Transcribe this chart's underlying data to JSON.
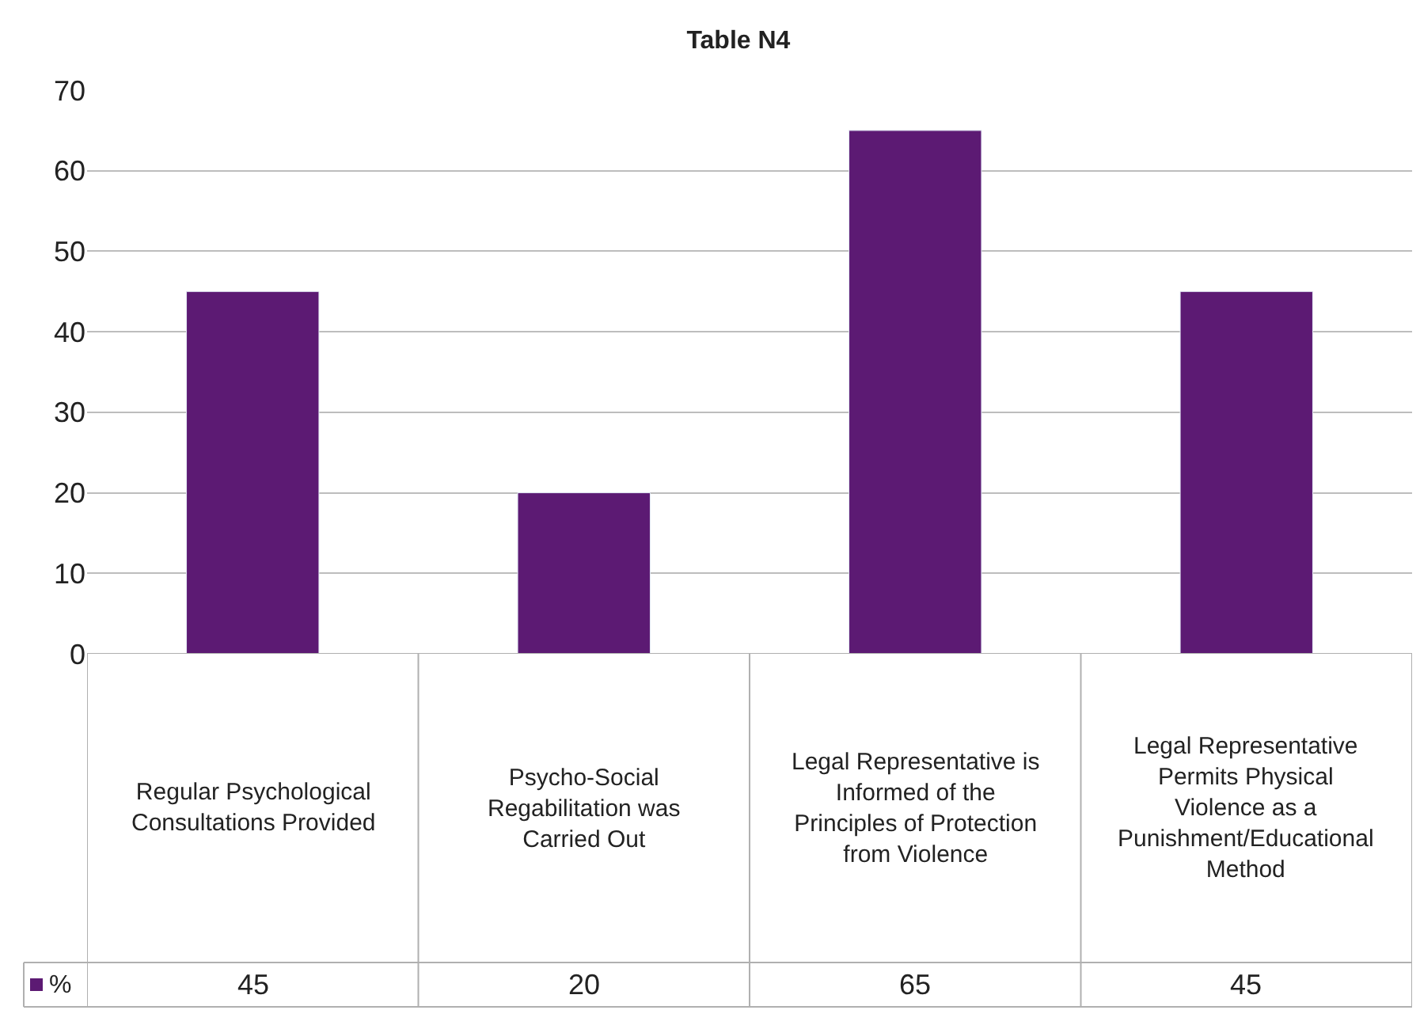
{
  "chart_data": {
    "type": "bar",
    "title": "Table N4",
    "categories": [
      "Regular Psychological Consultations Provided",
      "Psycho-Social Regabilitation was Carried Out",
      "Legal Representative is Informed of the Principles of Protection from Violence",
      "Legal Representative Permits Physical Violence as a Punishment/Educational Method"
    ],
    "series": [
      {
        "name": "%",
        "color": "#5c1a73",
        "values": [
          45,
          20,
          65,
          45
        ]
      }
    ],
    "ylim": [
      0,
      70
    ],
    "yticks": [
      0,
      10,
      20,
      30,
      40,
      50,
      60,
      70
    ],
    "grid": "y",
    "data_labels": true,
    "legend": "bottom"
  }
}
